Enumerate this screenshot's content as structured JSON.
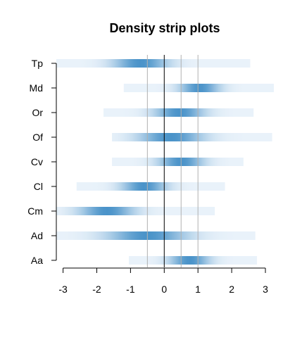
{
  "chart_data": {
    "type": "heatmap",
    "title": "Density strip plots",
    "xlabel": "",
    "ylabel": "",
    "xlim": [
      -3.2,
      3.25
    ],
    "x_ticks": [
      "-3",
      "-2",
      "-1",
      "0",
      "1",
      "2",
      "3"
    ],
    "reference_lines": [
      -0.5,
      0,
      0.5,
      1
    ],
    "color": "#4a93c9",
    "categories": [
      "Tp",
      "Md",
      "Or",
      "Of",
      "Cv",
      "Cl",
      "Cm",
      "Ad",
      "Aa"
    ],
    "series": [
      {
        "name": "Tp",
        "range": [
          -3.2,
          2.55
        ],
        "peak": -0.7,
        "spread": 0.55
      },
      {
        "name": "Md",
        "range": [
          -1.2,
          3.25
        ],
        "peak": 1.05,
        "spread": 0.4
      },
      {
        "name": "Or",
        "range": [
          -1.8,
          2.65
        ],
        "peak": 0.45,
        "spread": 0.5
      },
      {
        "name": "Of",
        "range": [
          -1.55,
          3.2
        ],
        "peak": 0.2,
        "spread": 0.65
      },
      {
        "name": "Cv",
        "range": [
          -1.55,
          2.35
        ],
        "peak": 0.5,
        "spread": 0.45
      },
      {
        "name": "Cl",
        "range": [
          -2.6,
          1.8
        ],
        "peak": -0.6,
        "spread": 0.45
      },
      {
        "name": "Cm",
        "range": [
          -3.2,
          1.5
        ],
        "peak": -1.7,
        "spread": 0.55
      },
      {
        "name": "Ad",
        "range": [
          -3.2,
          2.7
        ],
        "peak": -0.5,
        "spread": 0.8
      },
      {
        "name": "Aa",
        "range": [
          -1.05,
          2.75
        ],
        "peak": 0.75,
        "spread": 0.4
      }
    ]
  }
}
